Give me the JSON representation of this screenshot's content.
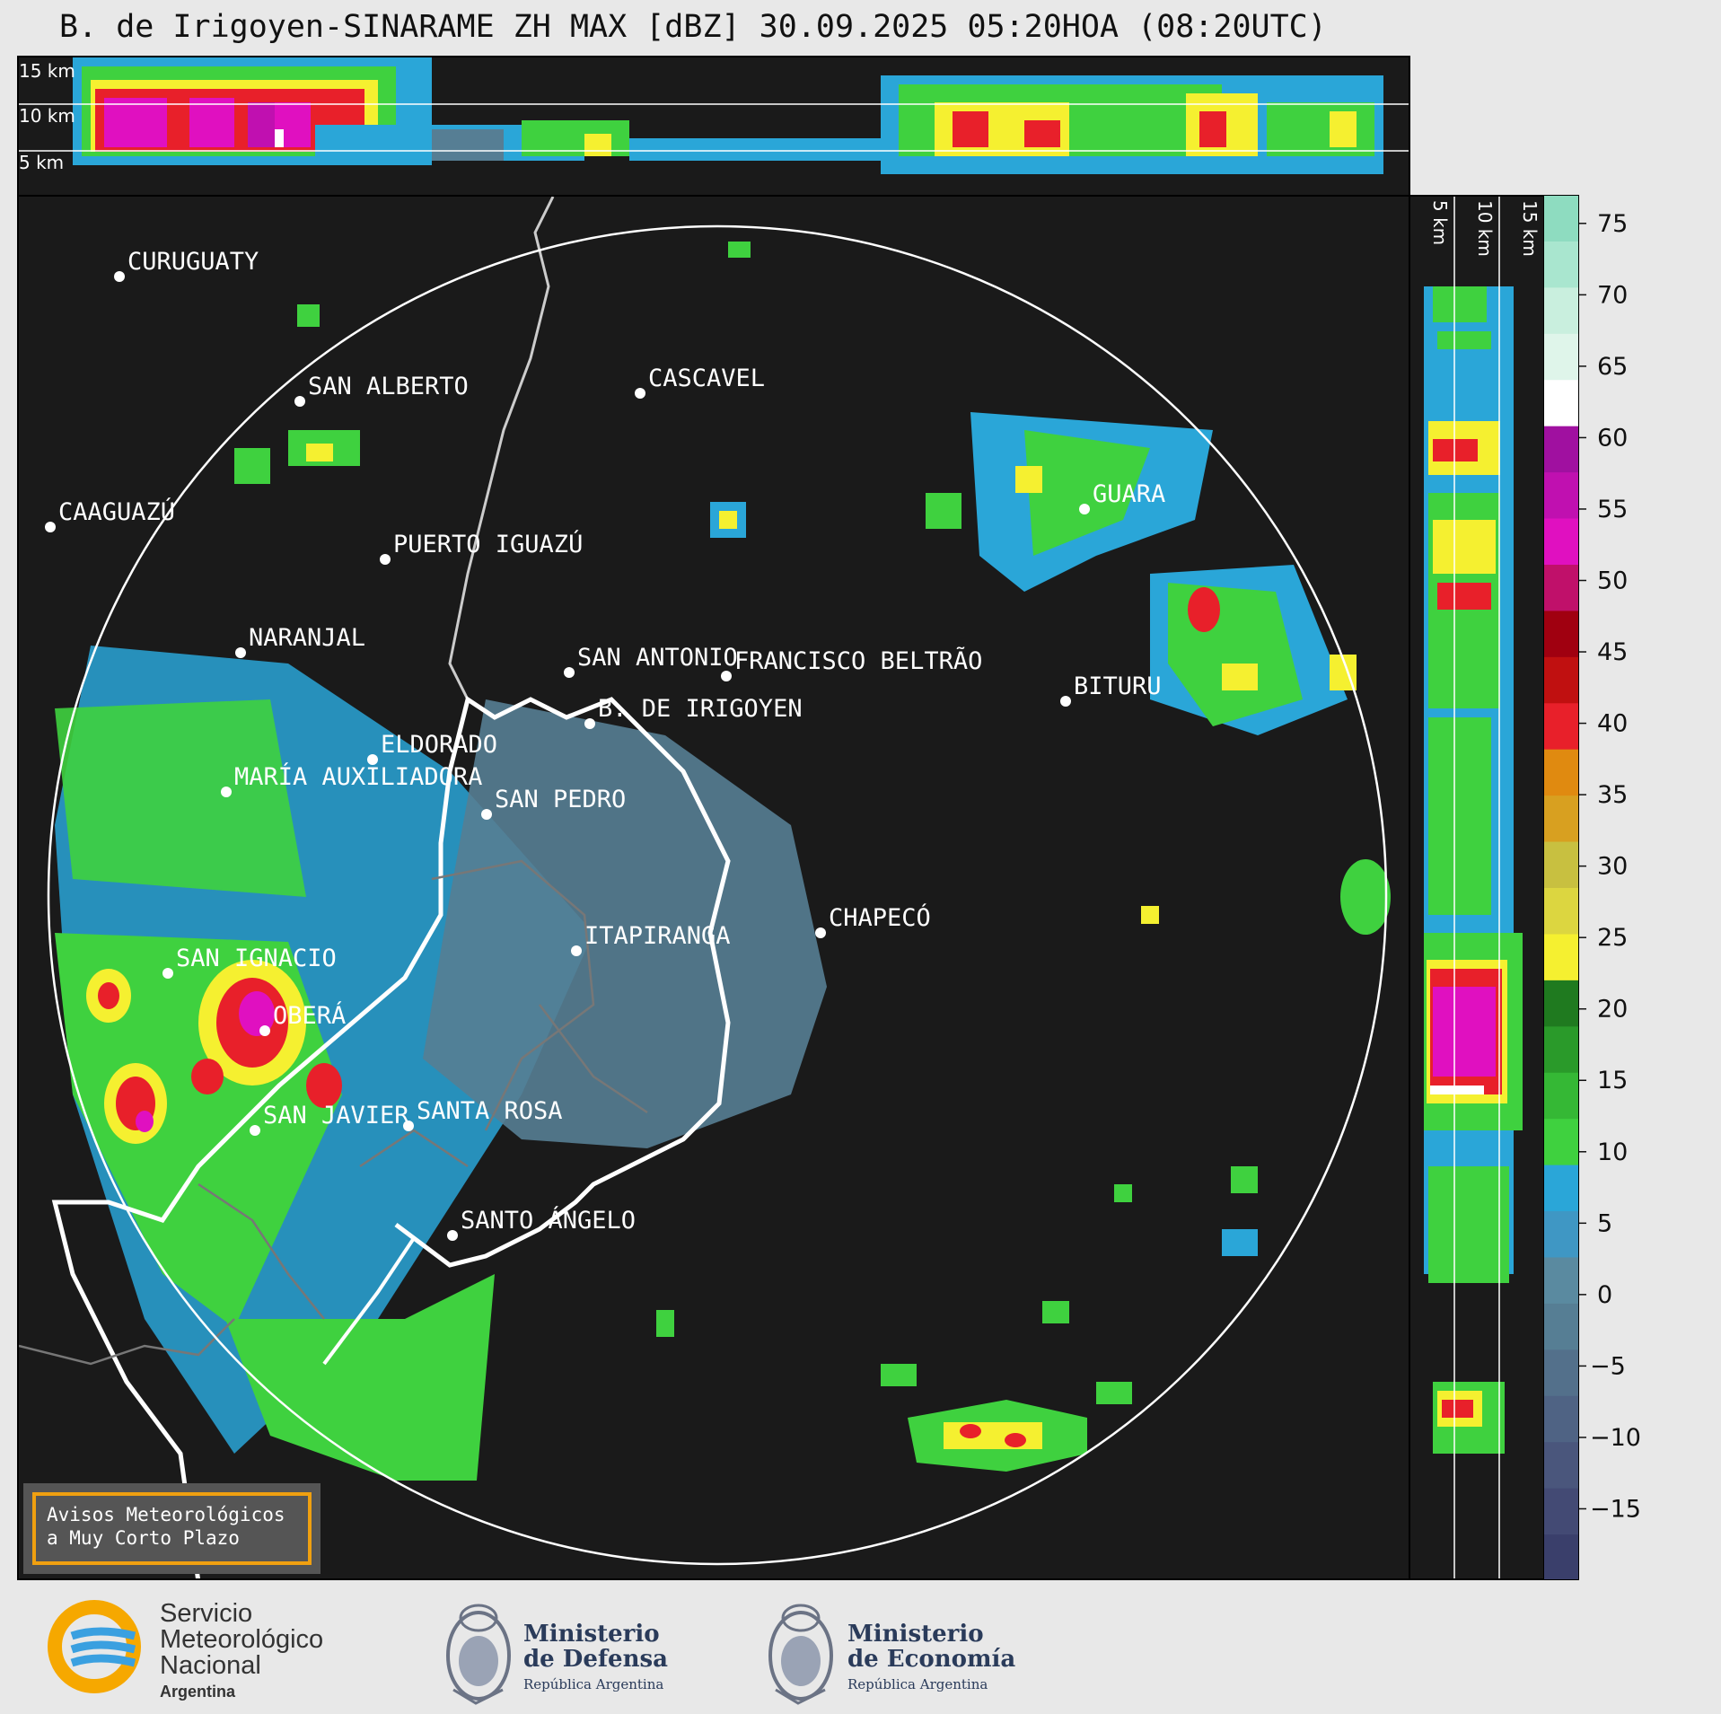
{
  "title": "B. de Irigoyen-SINARAME ZH MAX [dBZ] 30.09.2025 05:20HOA (08:20UTC)",
  "top_panel": {
    "km_labels": [
      "15 km",
      "10 km",
      "5 km"
    ]
  },
  "side_panel": {
    "km_labels": [
      "5 km",
      "10 km",
      "15 km"
    ]
  },
  "colorbar": {
    "ticks": [
      "75",
      "70",
      "65",
      "60",
      "55",
      "50",
      "45",
      "40",
      "35",
      "30",
      "25",
      "20",
      "15",
      "10",
      "5",
      "0",
      "−5",
      "−10",
      "−15"
    ],
    "colors": [
      "#3a3f6b",
      "#434a74",
      "#4a567c",
      "#4f6384",
      "#53708b",
      "#567e94",
      "#5a8aa0",
      "#3f97c4",
      "#2aa6d8",
      "#3fd13f",
      "#35b835",
      "#2a9a2a",
      "#1f7a1f",
      "#f5f030",
      "#dcd640",
      "#c8c040",
      "#d8a020",
      "#e08a10",
      "#e8202a",
      "#c01010",
      "#a00010",
      "#c0106a",
      "#e010c0",
      "#c010b0",
      "#a010a0",
      "#ffffff",
      "#dff5ea",
      "#c9efde",
      "#a9e6cf",
      "#8edcc0"
    ],
    "min": -20,
    "max": 77,
    "color_bounds": [
      -20,
      30,
      60,
      77
    ]
  },
  "cities": [
    {
      "name": "CURUGUATY"
    },
    {
      "name": "SAN ALBERTO"
    },
    {
      "name": "CASCAVEL"
    },
    {
      "name": "CAAGUAZÚ"
    },
    {
      "name": "PUERTO IGUAZÚ"
    },
    {
      "name": "GUARA"
    },
    {
      "name": "NARANJAL"
    },
    {
      "name": "SAN ANTONIO"
    },
    {
      "name": "FRANCISCO BELTRÃO"
    },
    {
      "name": "BITURU"
    },
    {
      "name": "B. DE IRIGOYEN"
    },
    {
      "name": "ELDORADO"
    },
    {
      "name": "MARÍA AUXILIADORA"
    },
    {
      "name": "SAN PEDRO"
    },
    {
      "name": "CHAPECÓ"
    },
    {
      "name": "ITAPIRANGA"
    },
    {
      "name": "SAN IGNACIO"
    },
    {
      "name": "OBERÁ"
    },
    {
      "name": "SAN JAVIER"
    },
    {
      "name": "SANTA ROSA"
    },
    {
      "name": "SANTO ÁNGELO"
    }
  ],
  "warning_box": {
    "line1": "Avisos Meteorológicos",
    "line2": "a Muy Corto Plazo"
  },
  "logos": {
    "smn": {
      "line1": "Servicio",
      "line2": "Meteorológico",
      "line3": "Nacional",
      "line4": "Argentina"
    },
    "defensa": {
      "line1": "Ministerio",
      "line2": "de Defensa",
      "line3": "República Argentina"
    },
    "economia": {
      "line1": "Ministerio",
      "line2": "de Economía",
      "line3": "República Argentina"
    }
  }
}
